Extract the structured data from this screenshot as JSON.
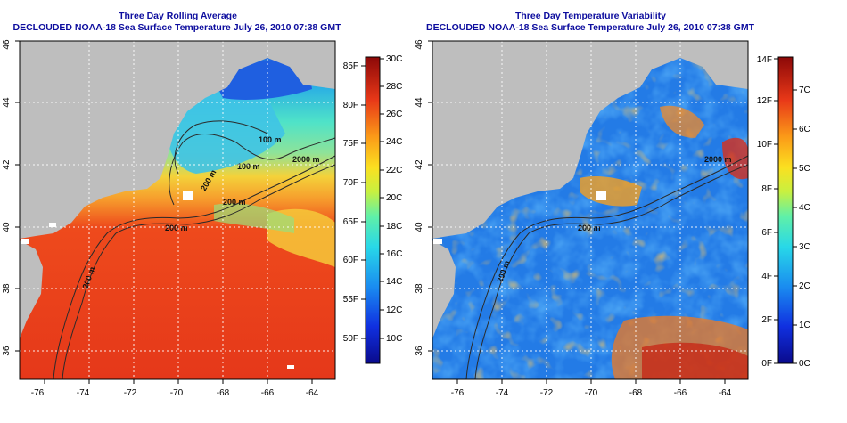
{
  "colors": {
    "land": "#bebebe",
    "title": "#0d0d9e",
    "contour": "#2a2a2a",
    "grid": "#ffffff"
  },
  "left_panel": {
    "title": "Three Day Rolling Average",
    "subtitle": "DECLOUDED NOAA-18 Sea Surface Temperature July 26, 2010 07:38 GMT",
    "lon_ticks": [
      "-76",
      "-74",
      "-72",
      "-70",
      "-68",
      "-66",
      "-64"
    ],
    "lat_ticks": [
      "36",
      "38",
      "40",
      "42",
      "44",
      "46"
    ],
    "contour_labels": [
      "200 m",
      "200 m",
      "100 m",
      "2000 m",
      "100 m",
      "200 m",
      "200 m"
    ],
    "colorbar": {
      "f_labels": [
        "50F",
        "55F",
        "60F",
        "65F",
        "70F",
        "75F",
        "80F",
        "85F"
      ],
      "c_labels": [
        "10C",
        "12C",
        "14C",
        "16C",
        "18C",
        "20C",
        "22C",
        "24C",
        "26C",
        "28C",
        "30C"
      ]
    }
  },
  "right_panel": {
    "title": "Three Day Temperature Variability",
    "subtitle": "DECLOUDED NOAA-18 Sea Surface Temperature July 26, 2010 07:38 GMT",
    "lon_ticks": [
      "-76",
      "-74",
      "-72",
      "-70",
      "-68",
      "-66",
      "-64"
    ],
    "lat_ticks": [
      "36",
      "38",
      "40",
      "42",
      "44",
      "46"
    ],
    "contour_labels": [
      "2000 m",
      "200 m",
      "200 m"
    ],
    "colorbar": {
      "f_labels": [
        "0F",
        "2F",
        "4F",
        "6F",
        "8F",
        "10F",
        "12F",
        "14F"
      ],
      "c_labels": [
        "0C",
        "1C",
        "2C",
        "3C",
        "4C",
        "5C",
        "6C",
        "7C"
      ]
    }
  }
}
